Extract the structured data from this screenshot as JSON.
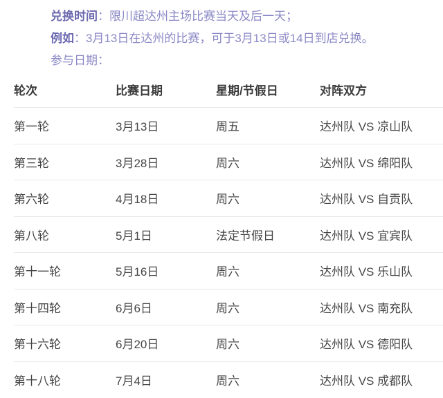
{
  "intro": {
    "line1_label": "兑换时间",
    "line1_text": "：限川超达州主场比赛当天及后一天；",
    "line2_label": "例如",
    "line2_text": "：3月13日在达州的比赛，可于3月13日或14日到店兑换。",
    "line3": "参与日期："
  },
  "table": {
    "headers": [
      "轮次",
      "比赛日期",
      "星期/节假日",
      "对阵双方"
    ],
    "rows": [
      [
        "第一轮",
        "3月13日",
        "周五",
        "达州队 VS 凉山队"
      ],
      [
        "第三轮",
        "3月28日",
        "周六",
        "达州队 VS 绵阳队"
      ],
      [
        "第六轮",
        "4月18日",
        "周六",
        "达州队 VS 自贡队"
      ],
      [
        "第八轮",
        "5月1日",
        "法定节假日",
        "达州队 VS 宜宾队"
      ],
      [
        "第十一轮",
        "5月16日",
        "周六",
        "达州队 VS 乐山队"
      ],
      [
        "第十四轮",
        "6月6日",
        "周六",
        "达州队 VS 南充队"
      ],
      [
        "第十六轮",
        "6月20日",
        "周六",
        "达州队 VS 德阳队"
      ],
      [
        "第十八轮",
        "7月4日",
        "周六",
        "达州队 VS 成都队"
      ]
    ]
  },
  "colors": {
    "accent_purple_bold": "#6c69b0",
    "accent_purple": "#8b89c6",
    "header_text": "#3a3a3a",
    "cell_text": "#454545",
    "divider": "#e8e8e8",
    "background": "#ffffff"
  }
}
